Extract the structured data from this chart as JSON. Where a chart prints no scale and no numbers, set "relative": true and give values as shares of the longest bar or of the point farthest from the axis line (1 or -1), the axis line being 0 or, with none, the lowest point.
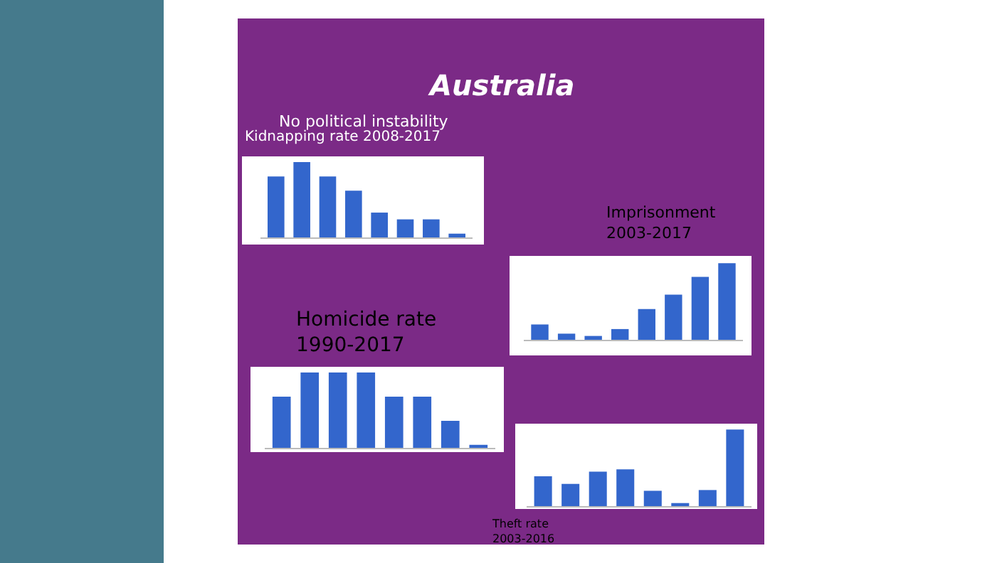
{
  "chart_data": [
    {
      "type": "other",
      "title": "Australia",
      "annotations": [
        "No political instability"
      ]
    },
    {
      "type": "bar",
      "title": "Kidnapping rate 2008-2017",
      "relative": true,
      "color": "#3366cc",
      "categories": [
        null,
        null,
        null,
        null,
        null,
        null,
        null,
        null
      ],
      "values": [
        0.81,
        1,
        0.81,
        0.62,
        0.33,
        0.24,
        0.24,
        0.05
      ]
    },
    {
      "type": "bar",
      "title": "Imprisonment\n2003-2017",
      "relative": true,
      "color": "#3366cc",
      "categories": [
        null,
        null,
        null,
        null,
        null,
        null,
        null,
        null
      ],
      "values": [
        0.2,
        0.08,
        0.05,
        0.14,
        0.4,
        0.59,
        0.82,
        1
      ]
    },
    {
      "type": "bar",
      "title": "Homicide rate\n1990-2017",
      "relative": true,
      "color": "#3366cc",
      "categories": [
        null,
        null,
        null,
        null,
        null,
        null,
        null,
        null
      ],
      "values": [
        0.68,
        1,
        1,
        1,
        0.68,
        0.68,
        0.36,
        0.04
      ]
    },
    {
      "type": "bar",
      "title": "Theft rate\n2003-2016",
      "relative": true,
      "color": "#3366cc",
      "categories": [
        null,
        null,
        null,
        null,
        null,
        null,
        null,
        null
      ],
      "values": [
        0.39,
        0.29,
        0.45,
        0.48,
        0.2,
        0.04,
        0.21,
        1
      ]
    }
  ]
}
